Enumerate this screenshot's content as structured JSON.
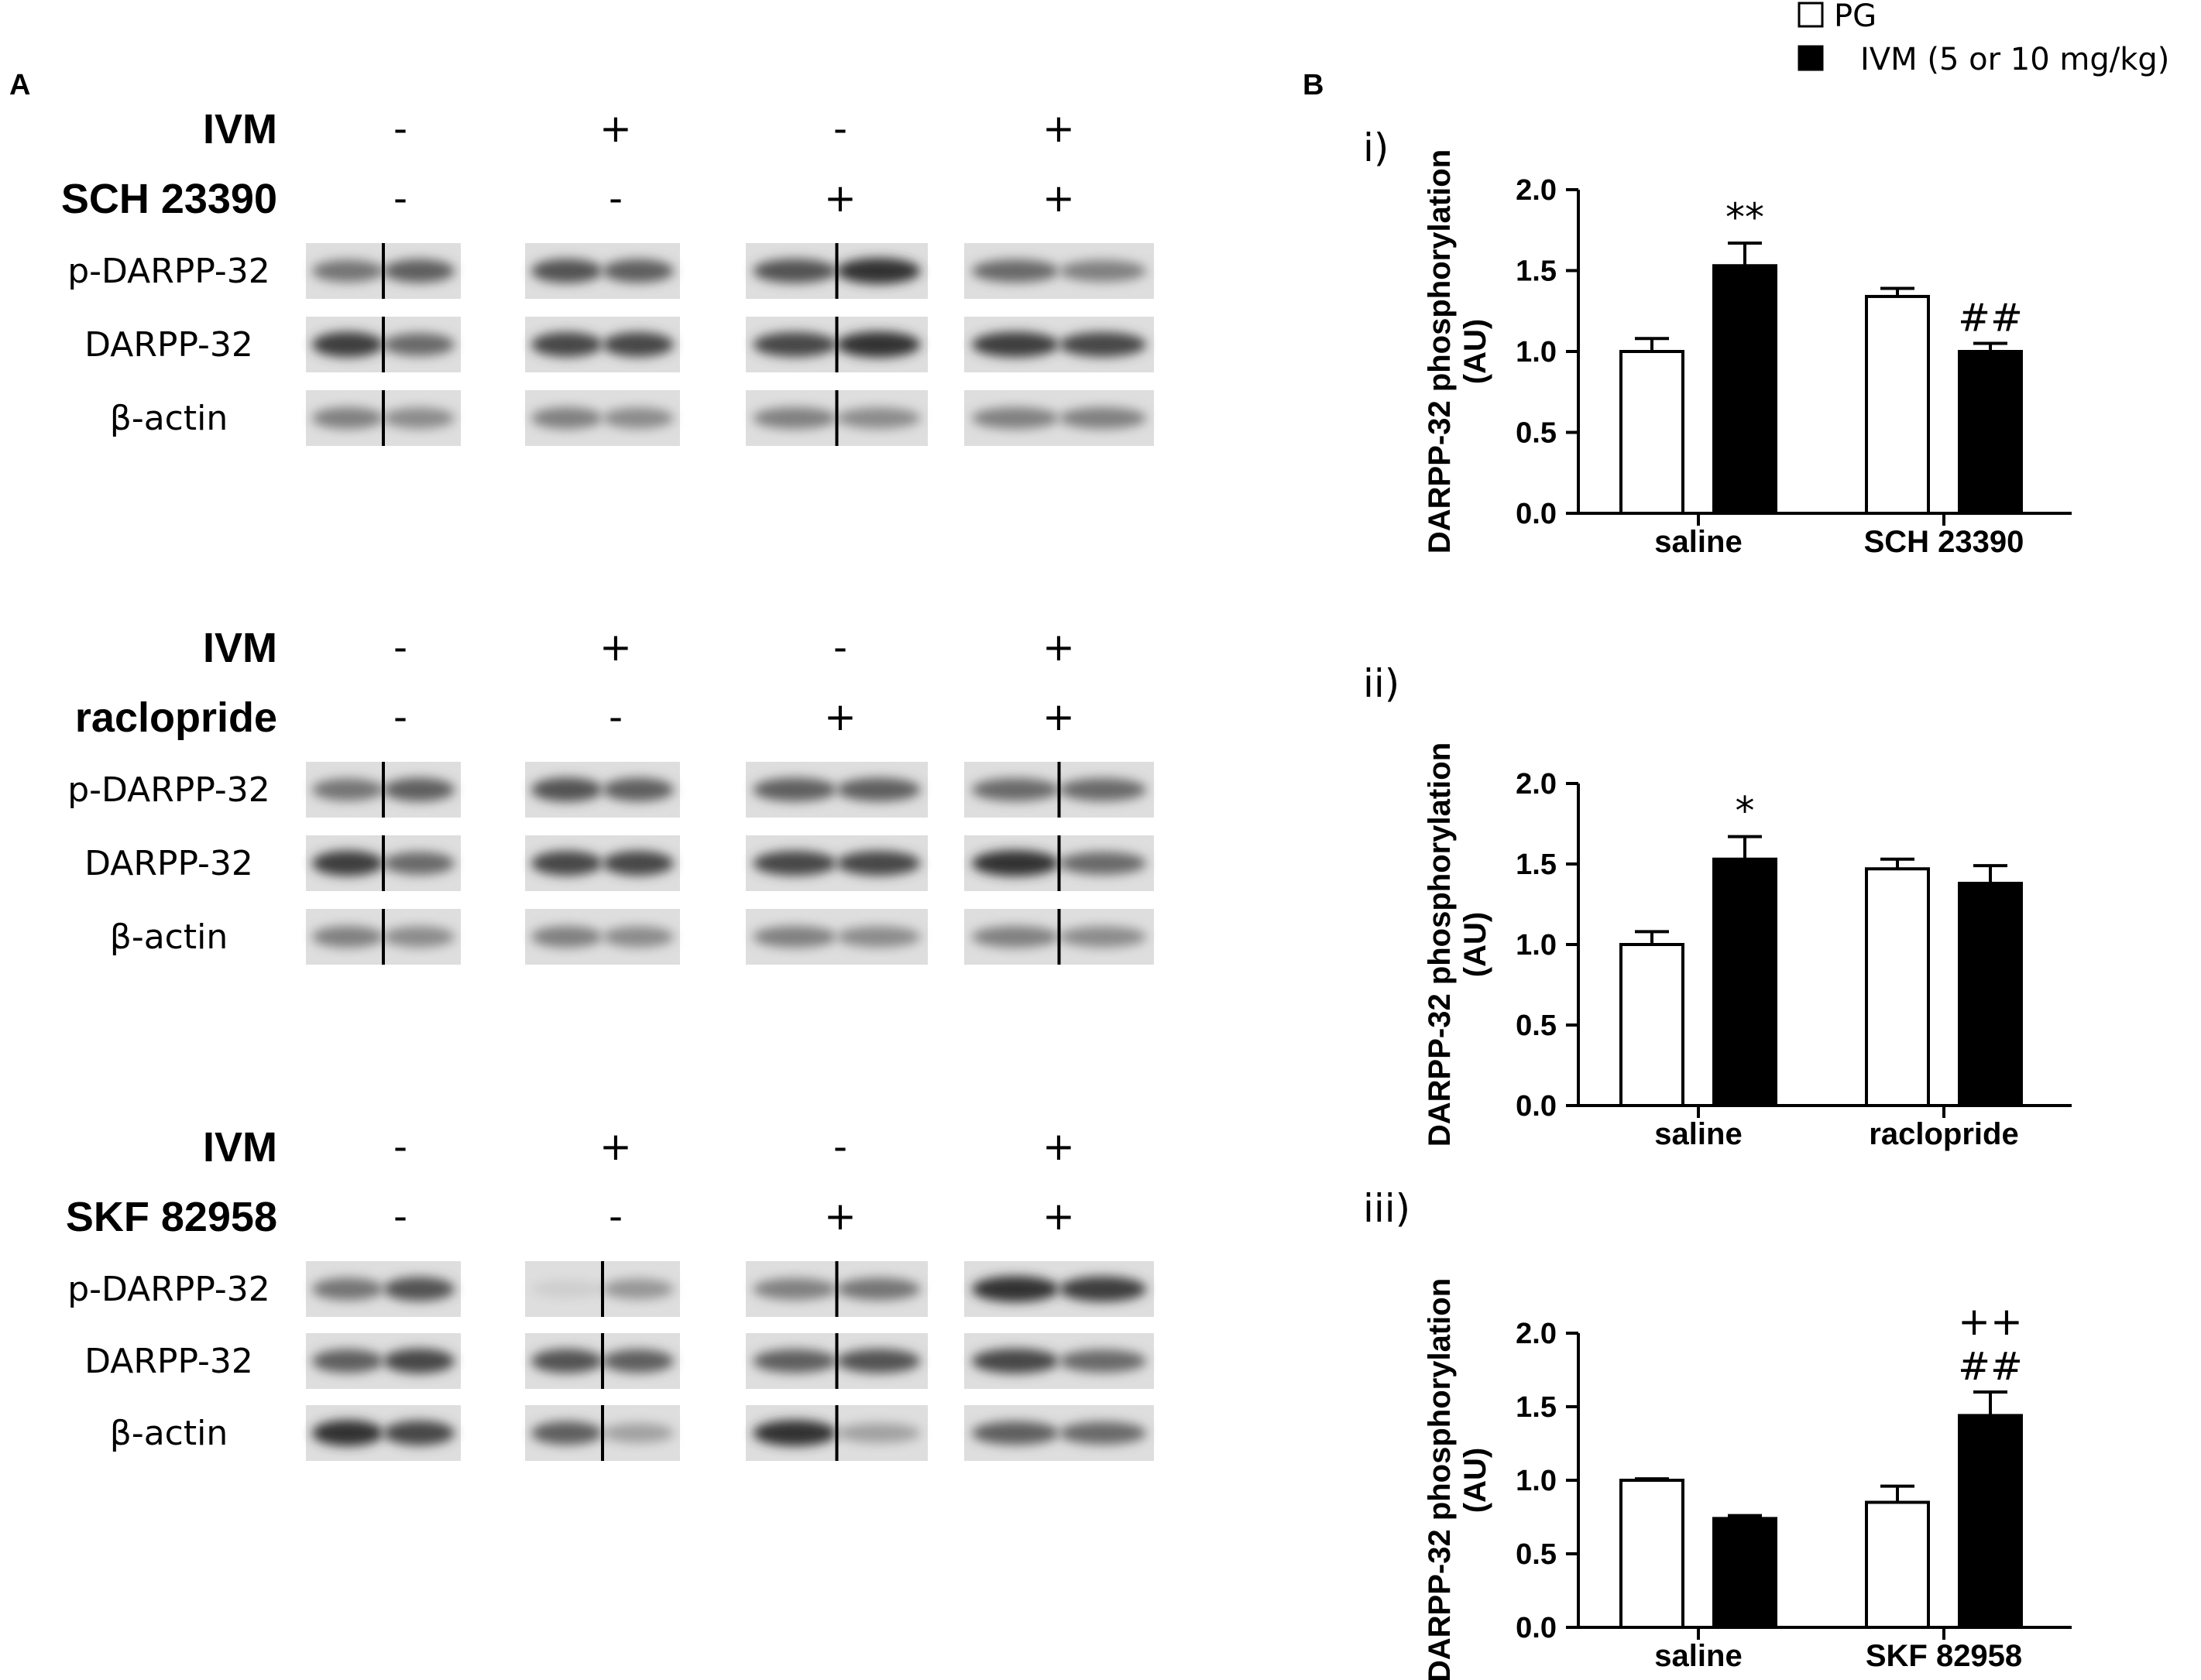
{
  "panel_a": {
    "letter": "A",
    "groups": [
      {
        "treatments": [
          {
            "name": "IVM",
            "signs": [
              "-",
              "+",
              "-",
              "+"
            ]
          },
          {
            "name": "SCH 23390",
            "signs": [
              "-",
              "-",
              "+",
              "+"
            ]
          }
        ],
        "rows": [
          {
            "label": "p-DARPP-32",
            "intensity": [
              [
                0.55,
                0.65
              ],
              [
                0.7,
                0.65
              ],
              [
                0.7,
                0.85
              ],
              [
                0.6,
                0.5
              ]
            ],
            "splits": [
              1,
              0,
              1,
              0
            ]
          },
          {
            "label": "DARPP-32",
            "intensity": [
              [
                0.8,
                0.6
              ],
              [
                0.75,
                0.75
              ],
              [
                0.75,
                0.85
              ],
              [
                0.8,
                0.75
              ]
            ],
            "splits": [
              1,
              0,
              1,
              0
            ]
          },
          {
            "label": "β-actin",
            "intensity": [
              [
                0.5,
                0.45
              ],
              [
                0.5,
                0.45
              ],
              [
                0.5,
                0.45
              ],
              [
                0.5,
                0.5
              ]
            ],
            "splits": [
              1,
              0,
              1,
              0
            ]
          }
        ]
      },
      {
        "treatments": [
          {
            "name": "IVM",
            "signs": [
              "-",
              "+",
              "-",
              "+"
            ]
          },
          {
            "name": "raclopride",
            "signs": [
              "-",
              "-",
              "+",
              "+"
            ]
          }
        ],
        "rows": [
          {
            "label": "p-DARPP-32",
            "intensity": [
              [
                0.55,
                0.65
              ],
              [
                0.7,
                0.65
              ],
              [
                0.65,
                0.65
              ],
              [
                0.6,
                0.6
              ]
            ],
            "splits": [
              1,
              0,
              0,
              1
            ]
          },
          {
            "label": "DARPP-32",
            "intensity": [
              [
                0.8,
                0.6
              ],
              [
                0.75,
                0.75
              ],
              [
                0.75,
                0.75
              ],
              [
                0.85,
                0.6
              ]
            ],
            "splits": [
              1,
              0,
              0,
              1
            ]
          },
          {
            "label": "β-actin",
            "intensity": [
              [
                0.5,
                0.45
              ],
              [
                0.5,
                0.45
              ],
              [
                0.5,
                0.45
              ],
              [
                0.5,
                0.45
              ]
            ],
            "splits": [
              1,
              0,
              0,
              1
            ]
          }
        ]
      },
      {
        "treatments": [
          {
            "name": "IVM",
            "signs": [
              "-",
              "+",
              "-",
              "+"
            ]
          },
          {
            "name": "SKF 82958",
            "signs": [
              "-",
              "-",
              "+",
              "+"
            ]
          }
        ],
        "rows": [
          {
            "label": "p-DARPP-32",
            "intensity": [
              [
                0.55,
                0.7
              ],
              [
                0.15,
                0.4
              ],
              [
                0.5,
                0.55
              ],
              [
                0.85,
                0.8
              ]
            ],
            "splits": [
              0,
              1,
              1,
              0
            ]
          },
          {
            "label": "DARPP-32",
            "intensity": [
              [
                0.65,
                0.75
              ],
              [
                0.7,
                0.65
              ],
              [
                0.65,
                0.7
              ],
              [
                0.75,
                0.6
              ]
            ],
            "splits": [
              0,
              1,
              1,
              0
            ]
          },
          {
            "label": "β-actin",
            "intensity": [
              [
                0.85,
                0.75
              ],
              [
                0.65,
                0.35
              ],
              [
                0.85,
                0.35
              ],
              [
                0.65,
                0.6
              ]
            ],
            "splits": [
              0,
              1,
              1,
              0
            ]
          }
        ]
      }
    ]
  },
  "panel_b": {
    "letter": "B",
    "legend": [
      {
        "label": "PG",
        "fill": "#ffffff"
      },
      {
        "label": "IVM (5 or 10 mg/kg)",
        "fill": "#000000"
      }
    ]
  },
  "chart_data": [
    {
      "type": "bar",
      "panel": "i)",
      "categories": [
        "saline",
        "SCH 23390"
      ],
      "ylabel": [
        "DARPP-32  phosphorylation",
        "(AU)"
      ],
      "ylim": [
        0,
        2.0
      ],
      "yticks": [
        "0.0",
        "0.5",
        "1.0",
        "1.5",
        "2.0"
      ],
      "series": [
        {
          "name": "PG",
          "values": [
            1.0,
            1.34
          ],
          "errors": [
            0.08,
            0.05
          ],
          "color": "#ffffff"
        },
        {
          "name": "IVM (5 or 10 mg/kg)",
          "values": [
            1.53,
            1.0
          ],
          "errors": [
            0.14,
            0.05
          ],
          "color": "#000000"
        }
      ],
      "annotations": [
        {
          "category": "saline",
          "series": 1,
          "text": [
            "**"
          ]
        },
        {
          "category": "SCH 23390",
          "series": 1,
          "text": [
            "##"
          ]
        }
      ]
    },
    {
      "type": "bar",
      "panel": "ii)",
      "categories": [
        "saline",
        "raclopride"
      ],
      "ylabel": [
        "DARPP-32  phosphorylation",
        "(AU)"
      ],
      "ylim": [
        0,
        2.0
      ],
      "yticks": [
        "0.0",
        "0.5",
        "1.0",
        "1.5",
        "2.0"
      ],
      "series": [
        {
          "name": "PG",
          "values": [
            1.0,
            1.47
          ],
          "errors": [
            0.08,
            0.06
          ],
          "color": "#ffffff"
        },
        {
          "name": "IVM (5 or 10 mg/kg)",
          "values": [
            1.53,
            1.38
          ],
          "errors": [
            0.14,
            0.11
          ],
          "color": "#000000"
        }
      ],
      "annotations": [
        {
          "category": "saline",
          "series": 1,
          "text": [
            "*"
          ]
        }
      ]
    },
    {
      "type": "bar",
      "panel": "iii)",
      "categories": [
        "saline",
        "SKF 82958"
      ],
      "ylabel": [
        "DARPP-32  phosphorylation",
        "(AU)"
      ],
      "ylim": [
        0,
        2.0
      ],
      "yticks": [
        "0.0",
        "0.5",
        "1.0",
        "1.5",
        "2.0"
      ],
      "series": [
        {
          "name": "PG",
          "values": [
            1.0,
            0.85
          ],
          "errors": [
            0.01,
            0.11
          ],
          "color": "#ffffff"
        },
        {
          "name": "IVM (5 or 10 mg/kg)",
          "values": [
            0.74,
            1.44
          ],
          "errors": [
            0.02,
            0.16
          ],
          "color": "#000000"
        }
      ],
      "annotations": [
        {
          "category": "SKF 82958",
          "series": 1,
          "text": [
            "++",
            "##"
          ]
        }
      ]
    }
  ]
}
